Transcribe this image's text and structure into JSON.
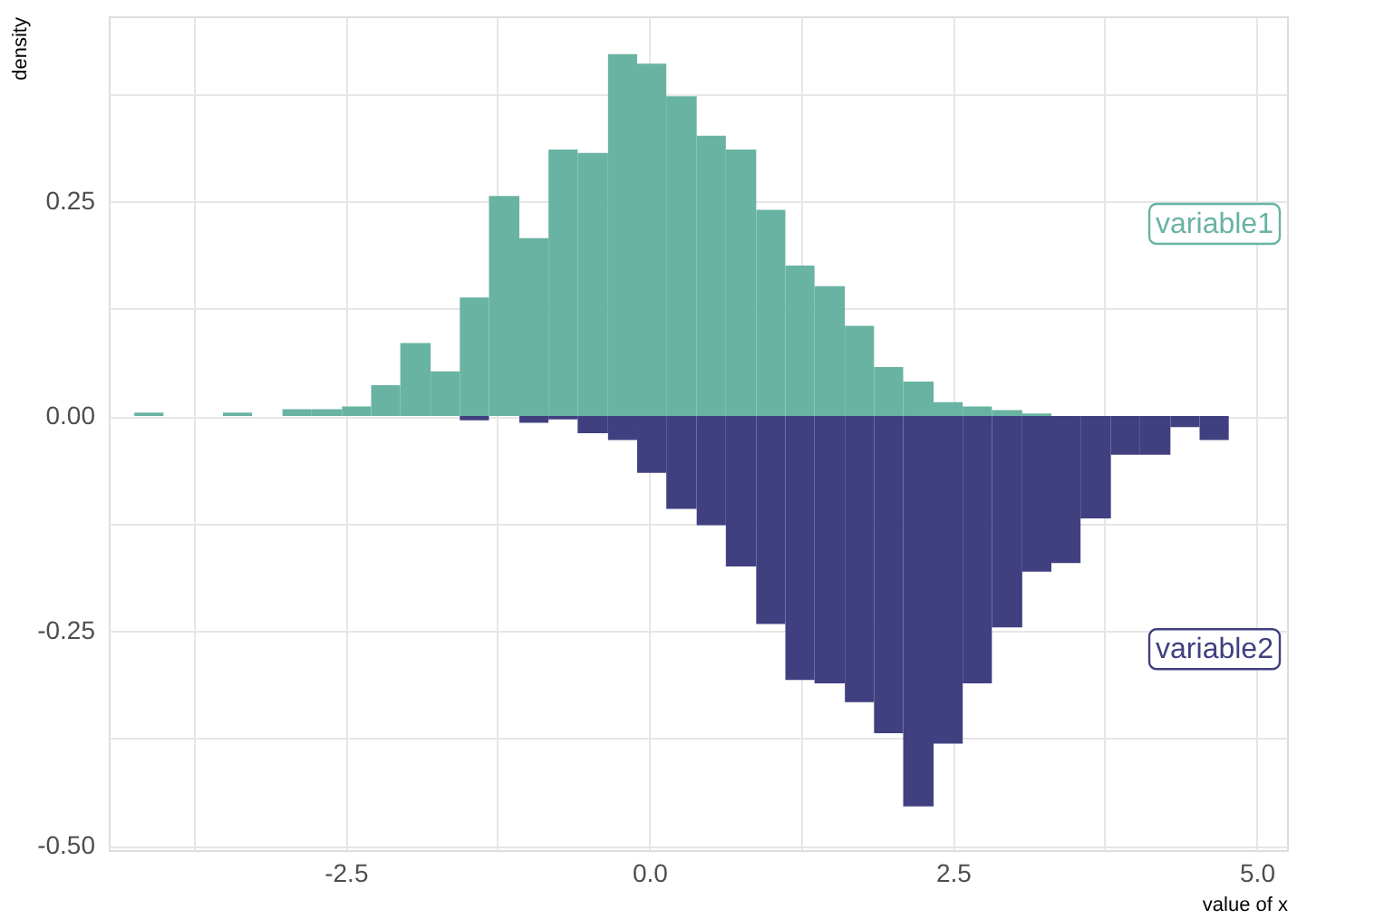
{
  "chart_data": {
    "type": "histogram",
    "xlabel": "value of x",
    "ylabel": "density",
    "bins": [
      -4.24,
      -4.0,
      -3.51,
      -3.27,
      -3.02,
      -2.78,
      -2.53,
      -2.29,
      -2.05,
      -1.8,
      -1.56,
      -1.32,
      -1.07,
      -0.83,
      -0.59,
      -0.34,
      -0.1,
      0.14,
      0.39,
      0.63,
      0.88,
      1.12,
      1.36,
      1.61,
      1.85,
      2.09,
      2.34,
      2.58,
      2.82,
      3.07,
      3.31,
      3.55,
      3.8,
      4.04,
      4.29,
      4.53,
      4.77
    ],
    "series": [
      {
        "name": "variable1",
        "color": "#69b3a2",
        "values": [
          0.004,
          0,
          0.004,
          0,
          0.008,
          0.008,
          0.011,
          0.036,
          0.085,
          0.052,
          0.138,
          0.256,
          0.207,
          0.31,
          0.306,
          0.421,
          0.41,
          0.372,
          0.326,
          0.31,
          0.24,
          0.175,
          0.151,
          0.105,
          0.057,
          0.04,
          0.016,
          0.011,
          0.007,
          0.003,
          0,
          0,
          0,
          0,
          0,
          0
        ]
      },
      {
        "name": "variable2",
        "color": "#404080",
        "values": [
          0,
          0,
          0,
          0,
          0,
          0,
          0,
          0,
          0,
          0,
          -0.005,
          0,
          -0.008,
          -0.004,
          -0.02,
          -0.028,
          -0.066,
          -0.108,
          -0.127,
          -0.175,
          -0.242,
          -0.307,
          -0.311,
          -0.333,
          -0.369,
          -0.454,
          -0.381,
          -0.311,
          -0.246,
          -0.181,
          -0.171,
          -0.119,
          -0.045,
          -0.045,
          -0.013,
          -0.028
        ]
      }
    ],
    "xlim": [
      -4.45,
      5.25
    ],
    "ylim": [
      -0.505,
      0.465
    ],
    "xticks": [
      {
        "value": -3.75,
        "label": null
      },
      {
        "value": -2.5,
        "label": "-2.5"
      },
      {
        "value": -1.25,
        "label": null
      },
      {
        "value": 0,
        "label": "0.0"
      },
      {
        "value": 1.25,
        "label": null
      },
      {
        "value": 2.5,
        "label": "2.5"
      },
      {
        "value": 3.75,
        "label": null
      },
      {
        "value": 5,
        "label": "5.0"
      }
    ],
    "yticks": [
      {
        "value": -0.5,
        "label": "-0.50"
      },
      {
        "value": -0.375,
        "label": null
      },
      {
        "value": -0.25,
        "label": "-0.25"
      },
      {
        "value": -0.125,
        "label": null
      },
      {
        "value": 0,
        "label": "0.00"
      },
      {
        "value": 0.125,
        "label": null
      },
      {
        "value": 0.25,
        "label": "0.25"
      },
      {
        "value": 0.375,
        "label": null
      }
    ],
    "grid": true
  }
}
